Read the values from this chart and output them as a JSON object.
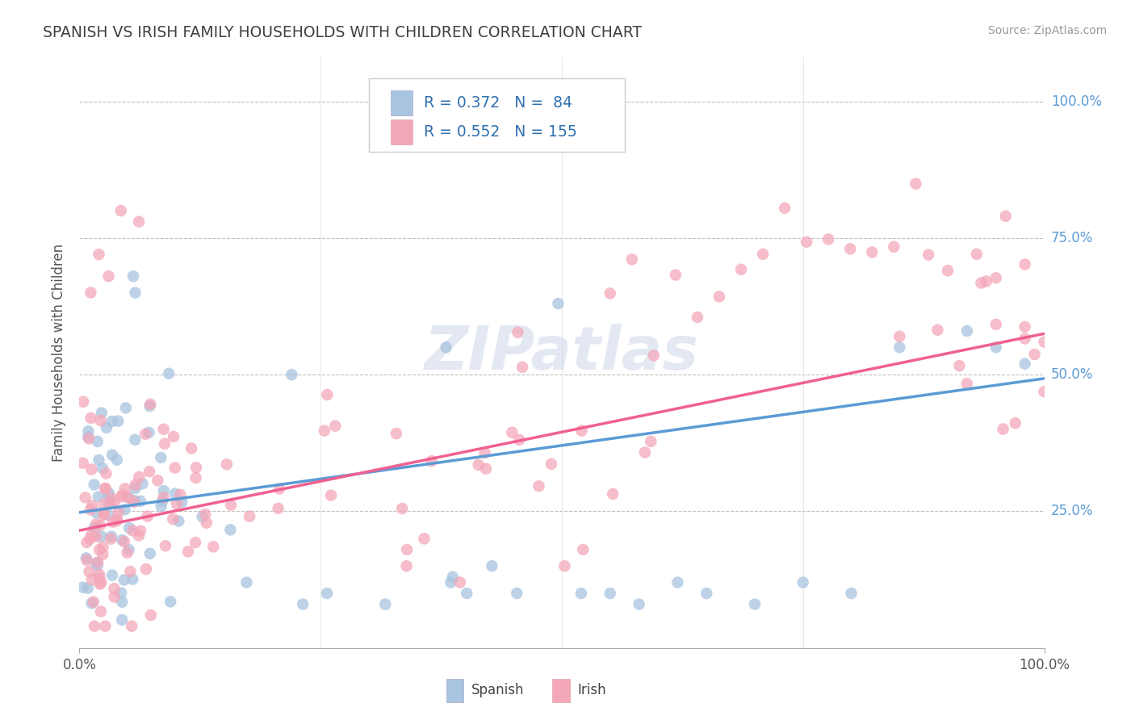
{
  "title": "SPANISH VS IRISH FAMILY HOUSEHOLDS WITH CHILDREN CORRELATION CHART",
  "source_text": "Source: ZipAtlas.com",
  "ylabel": "Family Households with Children",
  "watermark": "ZIPatlas",
  "spanish_color": "#a8c4e0",
  "irish_color": "#f4a7b9",
  "spanish_line_color": "#5b9bd5",
  "irish_line_color": "#f06090",
  "background_color": "#ffffff",
  "grid_color": "#b8b8b8",
  "title_color": "#404040",
  "ytick_color": "#5b9bd5",
  "ytick_labels": [
    "25.0%",
    "50.0%",
    "75.0%",
    "100.0%"
  ],
  "ytick_values": [
    0.25,
    0.5,
    0.75,
    1.0
  ],
  "xtick_labels": [
    "0.0%",
    "100.0%"
  ],
  "xtick_values": [
    0.0,
    1.0
  ],
  "xlim": [
    0.0,
    1.0
  ],
  "ylim": [
    0.0,
    1.08
  ],
  "legend_text_color": "#3070b0",
  "legend_label1": "R = 0.372   N =  84",
  "legend_label2": "R = 0.552   N = 155",
  "bottom_legend_spanish": "Spanish",
  "bottom_legend_irish": "Irish",
  "n_spanish": 84,
  "n_irish": 155,
  "spanish_seed": 42,
  "irish_seed": 99
}
